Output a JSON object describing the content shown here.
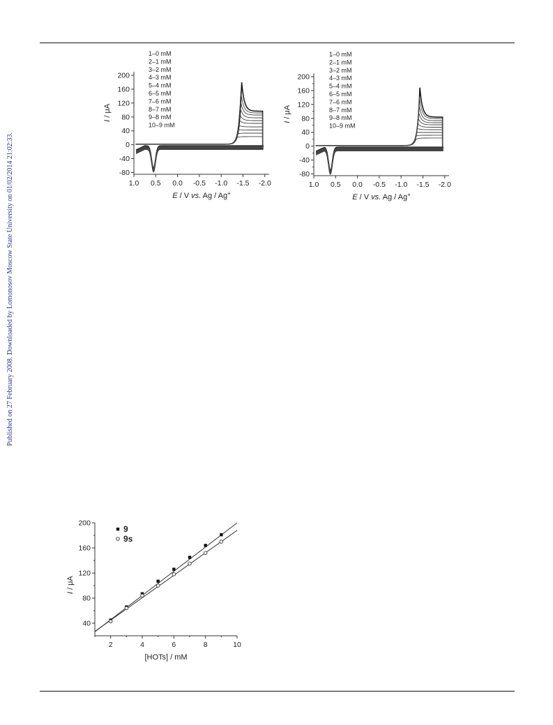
{
  "side_note": "Published on 27 February 2008. Downloaded by Lomonosov Moscow State University on 01/02/2014 21:02:33.",
  "chart_data": [
    {
      "type": "line",
      "title": "",
      "xlabel_parts": [
        "E",
        " / V ",
        "vs.",
        " Ag / Ag",
        "+"
      ],
      "ylabel_parts": [
        "I",
        " / μA"
      ],
      "xlim": [
        1.0,
        -2.1
      ],
      "ylim": [
        -85,
        210
      ],
      "xticks": [
        1.0,
        0.5,
        0.0,
        -0.5,
        -1.0,
        -1.5,
        -2.0
      ],
      "xtick_labels": [
        "1.0",
        "0.5",
        "0.0",
        "-0.5",
        "-1.0",
        "-1.5",
        "-2.0"
      ],
      "yticks": [
        -80,
        -40,
        0,
        40,
        80,
        120,
        160,
        200
      ],
      "ytick_labels": [
        "-80",
        "-40",
        "0",
        "40",
        "80",
        "120",
        "160",
        "200"
      ],
      "legend": [
        "1–0 mM",
        "2–1 mM",
        "3–2 mM",
        "4–3 mM",
        "5–4 mM",
        "6–5 mM",
        "7–6 mM",
        "8–7 mM",
        "9–8 mM",
        "10–9 mM"
      ],
      "legend_position": "top-left",
      "series": [
        {
          "peak_E": -1.47,
          "peak_I": 178,
          "end_I": 95
        },
        {
          "peak_E": -1.45,
          "peak_I": 152,
          "end_I": 90
        },
        {
          "peak_E": -1.44,
          "peak_I": 128,
          "end_I": 84
        },
        {
          "peak_E": -1.43,
          "peak_I": 108,
          "end_I": 76
        },
        {
          "peak_E": -1.42,
          "peak_I": 88,
          "end_I": 68
        },
        {
          "peak_E": -1.41,
          "peak_I": 70,
          "end_I": 60
        },
        {
          "peak_E": -1.4,
          "peak_I": 55,
          "end_I": 50
        },
        {
          "peak_E": -1.39,
          "peak_I": 42,
          "end_I": 41
        },
        {
          "peak_E": -1.38,
          "peak_I": 30,
          "end_I": 32
        },
        {
          "peak_E": -1.37,
          "peak_I": 20,
          "end_I": 22
        }
      ],
      "return_peak": {
        "E": 0.55,
        "I": -65
      }
    },
    {
      "type": "line",
      "title": "",
      "xlabel_parts": [
        "E",
        " / V ",
        "vs.",
        " Ag / Ag",
        "+"
      ],
      "ylabel_parts": [
        "I",
        " / μA"
      ],
      "xlim": [
        1.0,
        -2.1
      ],
      "ylim": [
        -85,
        210
      ],
      "xticks": [
        1.0,
        0.5,
        0.0,
        -0.5,
        -1.0,
        -1.5,
        -2.0
      ],
      "xtick_labels": [
        "1.0",
        "0.5",
        "0.0",
        "-0.5",
        "-1.0",
        "-1.5",
        "-2.0"
      ],
      "yticks": [
        -80,
        -60,
        -40,
        -20,
        0,
        20,
        40,
        60,
        80,
        100,
        120,
        140,
        160,
        180,
        200
      ],
      "ytick_labels": [
        "-80",
        "",
        "-40",
        "",
        "0",
        "",
        "40",
        "",
        "80",
        "",
        "120",
        "",
        "160",
        "",
        "200"
      ],
      "legend": [
        "1–0 mM",
        "2–1 mM",
        "3–2 mM",
        "4–3 mM",
        "5–4 mM",
        "6–5 mM",
        "7–6 mM",
        "8–7 mM",
        "9–8 mM",
        "10–9 mM"
      ],
      "legend_position": "top-left",
      "series": [
        {
          "peak_E": -1.43,
          "peak_I": 167,
          "end_I": 82
        },
        {
          "peak_E": -1.42,
          "peak_I": 140,
          "end_I": 78
        },
        {
          "peak_E": -1.41,
          "peak_I": 118,
          "end_I": 72
        },
        {
          "peak_E": -1.4,
          "peak_I": 98,
          "end_I": 66
        },
        {
          "peak_E": -1.39,
          "peak_I": 80,
          "end_I": 60
        },
        {
          "peak_E": -1.38,
          "peak_I": 64,
          "end_I": 53
        },
        {
          "peak_E": -1.37,
          "peak_I": 50,
          "end_I": 46
        },
        {
          "peak_E": -1.36,
          "peak_I": 38,
          "end_I": 38
        },
        {
          "peak_E": -1.35,
          "peak_I": 28,
          "end_I": 30
        },
        {
          "peak_E": -1.34,
          "peak_I": 18,
          "end_I": 22
        }
      ],
      "return_peak": {
        "E": 0.62,
        "I": -68
      }
    },
    {
      "type": "scatter",
      "title": "",
      "xlabel": "[HOTs] / mM",
      "ylabel_parts": [
        "I",
        " / μA"
      ],
      "xlim": [
        1,
        10
      ],
      "ylim": [
        20,
        200
      ],
      "xticks": [
        2,
        4,
        6,
        8,
        10
      ],
      "xtick_labels": [
        "2",
        "4",
        "6",
        "8",
        "10"
      ],
      "yticks": [
        40,
        80,
        120,
        160,
        200
      ],
      "ytick_labels": [
        "40",
        "80",
        "120",
        "160",
        "200"
      ],
      "legend_position": "top-left",
      "x": [
        2,
        3,
        4,
        5,
        6,
        7,
        8,
        9
      ],
      "series": [
        {
          "name": "9",
          "marker": "filled",
          "values": [
            45,
            66,
            87,
            107,
            126,
            145,
            164,
            181
          ],
          "fit": {
            "slope": 19.3,
            "intercept": 7
          }
        },
        {
          "name": "9s",
          "marker": "open",
          "values": [
            43,
            64,
            84,
            100,
            118,
            135,
            152,
            170
          ],
          "fit": {
            "slope": 17.9,
            "intercept": 9
          }
        }
      ]
    }
  ]
}
